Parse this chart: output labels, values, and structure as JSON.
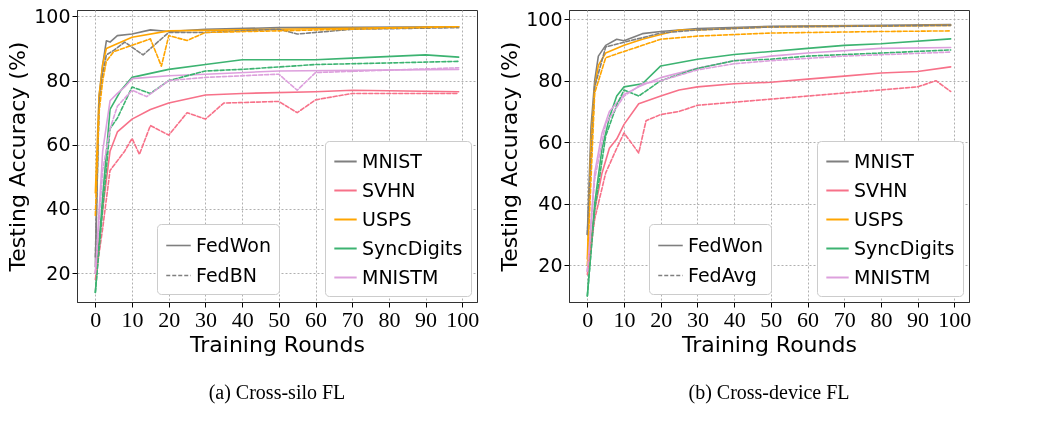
{
  "chart_data": [
    {
      "type": "line",
      "title": "(a) Cross-silo FL",
      "xlabel": "Training Rounds",
      "ylabel": "Testing Accuracy (%)",
      "xlim": [
        -5,
        104
      ],
      "ylim": [
        11,
        102
      ],
      "xticks": [
        0,
        10,
        20,
        30,
        40,
        50,
        60,
        70,
        80,
        90,
        100
      ],
      "yticks": [
        20,
        40,
        60,
        80,
        100
      ],
      "grid": true,
      "legend": "bottom right",
      "annotations": [
        "FedWon",
        "FedBN"
      ],
      "series": [
        {
          "name": "MNIST",
          "color": "#7f7f7f",
          "line_style": "solid",
          "x": [
            0,
            1,
            2,
            3,
            4,
            6,
            10,
            15,
            20,
            30,
            50,
            70,
            99
          ],
          "values": [
            22,
            75,
            85,
            92.4,
            92,
            94,
            94.5,
            95.8,
            95.3,
            96,
            96.5,
            96.6,
            96.8
          ]
        },
        {
          "color": "#7f7f7f",
          "line_style": "dashed",
          "x": [
            0,
            1,
            2,
            3,
            5,
            8,
            13,
            20,
            30,
            50,
            55,
            70,
            99
          ],
          "values": [
            25,
            72,
            82,
            88,
            89.4,
            92,
            88,
            95,
            95,
            96,
            94.5,
            96,
            96.5
          ]
        },
        {
          "name": "SVHN",
          "color": "#f77189",
          "line_style": "solid",
          "x": [
            0,
            2,
            4,
            6,
            10,
            15,
            20,
            30,
            40,
            60,
            70,
            99
          ],
          "values": [
            20,
            40,
            58,
            64,
            68,
            71,
            73,
            75.5,
            76,
            76.5,
            77,
            76.5
          ]
        },
        {
          "color": "#f77189",
          "line_style": "dashed",
          "x": [
            0,
            2,
            4,
            8,
            10,
            12,
            15,
            20,
            25,
            30,
            35,
            50,
            55,
            60,
            70,
            80,
            99
          ],
          "values": [
            18,
            34,
            52,
            58,
            62,
            57,
            66,
            63,
            70,
            68,
            73,
            73.5,
            70,
            74,
            76,
            76,
            76
          ]
        },
        {
          "name": "USPS",
          "color": "#ffa500",
          "line_style": "solid",
          "x": [
            0,
            1,
            2,
            3,
            5,
            10,
            20,
            50,
            99
          ],
          "values": [
            45,
            75,
            85,
            90,
            91,
            93.5,
            95.5,
            96,
            96.8
          ]
        },
        {
          "color": "#ffa500",
          "line_style": "dashed",
          "x": [
            0,
            1,
            2,
            3,
            5,
            10,
            15,
            18,
            20,
            25,
            30,
            50,
            99
          ],
          "values": [
            38,
            70,
            80,
            86,
            89,
            91,
            93,
            84.5,
            94,
            92.5,
            95,
            95.5,
            96.8
          ]
        },
        {
          "name": "SyncDigits",
          "color": "#3cb371",
          "line_style": "solid",
          "x": [
            0,
            2,
            4,
            7,
            10,
            20,
            30,
            40,
            60,
            70,
            90,
            99
          ],
          "values": [
            14,
            44,
            71,
            77,
            81,
            83.5,
            85,
            86.5,
            86.5,
            87,
            88,
            87.3
          ]
        },
        {
          "color": "#3cb371",
          "line_style": "dashed",
          "x": [
            0,
            2,
            4,
            6,
            10,
            15,
            20,
            30,
            40,
            60,
            80,
            99
          ],
          "values": [
            14,
            40,
            65,
            68.3,
            78,
            76,
            80,
            83,
            83.5,
            85,
            85.5,
            86
          ]
        },
        {
          "name": "MNISTM",
          "color": "#dda0dd",
          "line_style": "solid",
          "x": [
            0,
            2,
            4,
            6,
            8,
            10,
            20,
            30,
            50,
            99
          ],
          "values": [
            20,
            58,
            73.7,
            76,
            78,
            80.6,
            81.5,
            82,
            83,
            83.5
          ]
        },
        {
          "color": "#dda0dd",
          "line_style": "dashed",
          "x": [
            0,
            2,
            4,
            6,
            10,
            14,
            20,
            30,
            50,
            55,
            60,
            99
          ],
          "values": [
            20,
            52,
            65,
            72,
            77,
            75,
            80,
            81,
            82,
            77,
            82.5,
            84
          ]
        }
      ]
    },
    {
      "type": "line",
      "title": "(b) Cross-device FL",
      "xlabel": "Training Rounds",
      "ylabel": "Testing Accuracy (%)",
      "xlim": [
        -5,
        104
      ],
      "ylim": [
        8,
        103
      ],
      "xticks": [
        0,
        10,
        20,
        30,
        40,
        50,
        60,
        70,
        80,
        90,
        100
      ],
      "yticks": [
        20,
        40,
        60,
        80,
        100
      ],
      "grid": true,
      "legend": "bottom right",
      "annotations": [
        "FedWon",
        "FedAvg"
      ],
      "series": [
        {
          "name": "MNIST",
          "color": "#7f7f7f",
          "line_style": "solid",
          "x": [
            0,
            1,
            2,
            3,
            5,
            8,
            10,
            15,
            20,
            30,
            50,
            80,
            99
          ],
          "values": [
            30,
            65,
            80,
            88,
            91.5,
            93.5,
            93,
            95.3,
            96,
            97,
            97.7,
            98,
            98.3
          ]
        },
        {
          "color": "#7f7f7f",
          "line_style": "dashed",
          "x": [
            0,
            2,
            5,
            10,
            20,
            30,
            50,
            99
          ],
          "values": [
            30,
            78,
            91,
            92.5,
            95.5,
            96.5,
            97.5,
            98
          ]
        },
        {
          "name": "SVHN",
          "color": "#f77189",
          "line_style": "solid",
          "x": [
            0,
            2,
            4,
            6,
            8,
            10,
            14,
            20,
            25,
            30,
            40,
            50,
            60,
            70,
            80,
            90,
            99
          ],
          "values": [
            18,
            38,
            50,
            58,
            61,
            65.8,
            72.5,
            75,
            77,
            78,
            79,
            79.5,
            80.5,
            81.5,
            82.5,
            83,
            84.5
          ]
        },
        {
          "color": "#f77189",
          "line_style": "dashed",
          "x": [
            0,
            2,
            5,
            8,
            10,
            14,
            16,
            20,
            25,
            30,
            40,
            50,
            60,
            70,
            80,
            90,
            95,
            99
          ],
          "values": [
            17,
            35,
            50,
            58,
            63,
            56.5,
            67,
            69,
            70,
            72,
            73,
            74,
            75,
            76,
            77,
            78,
            80,
            76.5
          ]
        },
        {
          "name": "USPS",
          "color": "#ffa500",
          "line_style": "solid",
          "x": [
            0,
            1,
            2,
            3,
            5,
            10,
            15,
            20,
            25,
            30,
            50,
            99
          ],
          "values": [
            22,
            60,
            78,
            85,
            89,
            91.5,
            93.5,
            95,
            96.5,
            96.5,
            97.5,
            98
          ]
        },
        {
          "color": "#ffa500",
          "line_style": "dashed",
          "x": [
            0,
            2,
            5,
            10,
            15,
            20,
            30,
            50,
            80,
            99
          ],
          "values": [
            20,
            76,
            87.5,
            89.5,
            91.5,
            93.5,
            94.5,
            95.5,
            96,
            96.2
          ]
        },
        {
          "name": "SyncDigits",
          "color": "#3cb371",
          "line_style": "solid",
          "x": [
            0,
            2,
            4,
            6,
            8,
            10,
            15,
            20,
            30,
            40,
            50,
            60,
            70,
            80,
            99
          ],
          "values": [
            10,
            40,
            58,
            68,
            75,
            78,
            79,
            84.8,
            87,
            88.5,
            89.5,
            90.5,
            91.5,
            92,
            93.6
          ]
        },
        {
          "color": "#3cb371",
          "line_style": "dashed",
          "x": [
            0,
            2,
            5,
            8,
            10,
            14,
            20,
            30,
            40,
            50,
            60,
            80,
            99
          ],
          "values": [
            10,
            38,
            62,
            72,
            77,
            75,
            80,
            84,
            86.5,
            87,
            88,
            89,
            90
          ]
        },
        {
          "name": "MNISTM",
          "color": "#dda0dd",
          "line_style": "solid",
          "x": [
            0,
            2,
            4,
            6,
            10,
            14,
            20,
            30,
            40,
            50,
            60,
            80,
            99
          ],
          "values": [
            18,
            50,
            63,
            70,
            75.5,
            78,
            81,
            84,
            86.5,
            88,
            89,
            90.5,
            90.8
          ]
        },
        {
          "color": "#dda0dd",
          "line_style": "dashed",
          "x": [
            0,
            2,
            5,
            10,
            15,
            20,
            30,
            40,
            50,
            70,
            99
          ],
          "values": [
            18,
            48,
            66,
            75,
            79,
            80,
            83.5,
            85.5,
            86.5,
            88,
            89.3
          ]
        }
      ]
    }
  ]
}
